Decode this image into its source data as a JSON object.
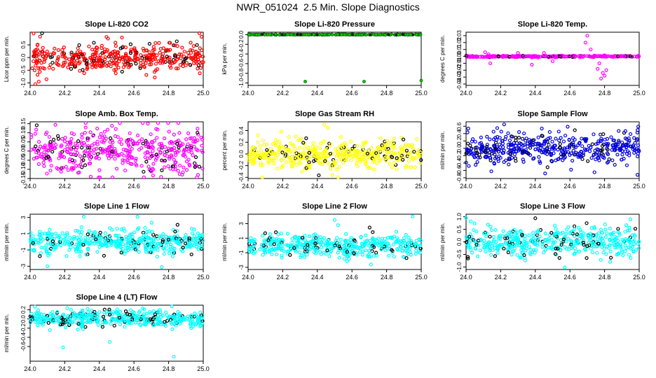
{
  "page": {
    "title": "NWR_051024  2.5 Min. Slope Diagnostics"
  },
  "x_ticks": [
    24.0,
    24.2,
    24.4,
    24.6,
    24.8,
    25.0
  ],
  "chart_data": [
    {
      "id": "co2",
      "type": "scatter",
      "title": "Slope Li-820 CO2",
      "ylabel": "Licor ppm per min.",
      "xlim": [
        24.0,
        25.0
      ],
      "ylim": [
        -1.1,
        1.0
      ],
      "yticks": [
        -1.0,
        -0.5,
        0.0,
        0.5
      ],
      "color": "#ff0000",
      "count": 440,
      "seed": 11,
      "sd": 0.27,
      "center": 0.0,
      "points": [
        [
          24.02,
          0.95
        ],
        [
          24.03,
          -1.05
        ],
        [
          24.05,
          -0.95
        ],
        [
          24.45,
          0.75
        ],
        [
          24.99,
          0.82
        ],
        [
          24.98,
          -0.62
        ]
      ]
    },
    {
      "id": "pressure",
      "type": "scatter",
      "title": "Slope Li-820 Pressure",
      "ylabel": "kPa per min.",
      "xlim": [
        24.0,
        25.0
      ],
      "ylim": [
        -1.05,
        0.05
      ],
      "yticks": [
        -1.0,
        -0.8,
        -0.6,
        -0.4,
        -0.2,
        0.0
      ],
      "color": "#00cc00",
      "count": 260,
      "seed": 22,
      "sd": 0.003,
      "center": 0.0,
      "solid": true,
      "points": [
        [
          24.33,
          -0.97
        ],
        [
          24.67,
          -0.97
        ],
        [
          25.0,
          -0.95
        ]
      ]
    },
    {
      "id": "temp",
      "type": "scatter",
      "title": "Slope Li-820 Temp.",
      "ylabel": "degrees C per min.",
      "xlim": [
        24.0,
        25.0
      ],
      "ylim": [
        -0.042,
        0.035
      ],
      "yticks": [
        -0.04,
        -0.03,
        -0.02,
        -0.01,
        0.0,
        0.01,
        0.02,
        0.03
      ],
      "color": "#ff00ff",
      "count": 300,
      "seed": 33,
      "sd": 0.0005,
      "center": 0.0,
      "points": [
        [
          24.11,
          0.006
        ],
        [
          24.14,
          -0.01
        ],
        [
          24.13,
          0.003
        ],
        [
          24.3,
          0.005
        ],
        [
          24.38,
          -0.012
        ],
        [
          24.45,
          0.005
        ],
        [
          24.5,
          -0.007
        ],
        [
          24.7,
          0.03
        ],
        [
          24.69,
          0.02
        ],
        [
          24.72,
          0.01
        ],
        [
          24.76,
          -0.018
        ],
        [
          24.78,
          -0.032
        ],
        [
          24.8,
          -0.028
        ],
        [
          24.81,
          -0.02
        ],
        [
          24.77,
          -0.01
        ],
        [
          24.79,
          -0.024
        ]
      ]
    },
    {
      "id": "boxtemp",
      "type": "scatter",
      "title": "Slope Amb. Box Temp.",
      "ylabel": "degrees C per min.",
      "xlim": [
        24.0,
        25.0
      ],
      "ylim": [
        -0.15,
        0.16
      ],
      "yticks": [
        -0.15,
        -0.1,
        -0.05,
        0.0,
        0.05,
        0.1,
        0.15
      ],
      "color": "#ff00ff",
      "count": 460,
      "seed": 44,
      "sd": 0.06,
      "center": 0.0,
      "points": [
        [
          24.68,
          0.15
        ],
        [
          24.35,
          -0.14
        ],
        [
          24.97,
          -0.13
        ]
      ]
    },
    {
      "id": "rh",
      "type": "scatter",
      "title": "Slope Gas Stream RH",
      "ylabel": "percent per min.",
      "xlim": [
        24.0,
        25.0
      ],
      "ylim": [
        -0.42,
        0.55
      ],
      "yticks": [
        -0.4,
        -0.2,
        0.0,
        0.2,
        0.4
      ],
      "color": "#ffff00",
      "count": 470,
      "seed": 55,
      "sd": 0.13,
      "center": 0.0,
      "points": [
        [
          24.44,
          0.5
        ],
        [
          24.46,
          0.45
        ],
        [
          24.52,
          -0.4
        ]
      ]
    },
    {
      "id": "sample",
      "type": "scatter",
      "title": "Slope Sample Flow",
      "ylabel": "ml/min per min.",
      "xlim": [
        24.0,
        25.0
      ],
      "ylim": [
        -0.82,
        0.72
      ],
      "yticks": [
        -0.8,
        -0.6,
        -0.4,
        -0.2,
        0.0,
        0.2,
        0.4,
        0.6
      ],
      "color": "#0000dd",
      "count": 470,
      "seed": 66,
      "sd": 0.2,
      "center": 0.0,
      "points": [
        [
          24.22,
          0.65
        ],
        [
          24.18,
          0.55
        ],
        [
          24.99,
          -0.72
        ]
      ]
    },
    {
      "id": "line1",
      "type": "scatter",
      "title": "Slope Line 1 Flow",
      "ylabel": "ml/min per min.",
      "xlim": [
        24.0,
        25.0
      ],
      "ylim": [
        -3.4,
        3.4
      ],
      "yticks": [
        -3,
        -1,
        1,
        3
      ],
      "color": "#00ffff",
      "count": 460,
      "seed": 77,
      "sd": 0.75,
      "center": 0.0,
      "points": [
        [
          24.31,
          3.1
        ],
        [
          24.62,
          3.1
        ],
        [
          24.76,
          -3.1
        ],
        [
          24.1,
          -3.0
        ]
      ]
    },
    {
      "id": "line2",
      "type": "scatter",
      "title": "Slope Line 2 Flow",
      "ylabel": "ml/min per min.",
      "xlim": [
        24.0,
        25.0
      ],
      "ylim": [
        -3.3,
        4.3
      ],
      "yticks": [
        -3,
        -1,
        1,
        3
      ],
      "color": "#00ffff",
      "count": 460,
      "seed": 88,
      "sd": 0.75,
      "center": 0.0,
      "points": [
        [
          24.5,
          3.5
        ],
        [
          24.52,
          2.8
        ],
        [
          24.71,
          -2.6
        ],
        [
          24.95,
          4.0
        ]
      ]
    },
    {
      "id": "line3",
      "type": "scatter",
      "title": "Slope Line 3 Flow",
      "ylabel": "ml/min per min.",
      "xlim": [
        24.0,
        25.0
      ],
      "ylim": [
        -1.1,
        1.1
      ],
      "yticks": [
        -1.0,
        -0.5,
        0.0,
        0.5,
        1.0
      ],
      "color": "#00ffff",
      "count": 460,
      "seed": 99,
      "sd": 0.28,
      "center": 0.0,
      "points": [
        [
          24.0,
          0.95
        ],
        [
          24.57,
          -1.02
        ],
        [
          24.95,
          0.9
        ]
      ]
    },
    {
      "id": "line4",
      "type": "scatter",
      "title": "Slope Line 4 (LT) Flow",
      "ylabel": "ml/min per min.",
      "xlim": [
        24.0,
        25.0
      ],
      "ylim": [
        -0.92,
        0.3
      ],
      "yticks": [
        -0.6,
        -0.4,
        -0.2,
        0.0,
        0.2
      ],
      "color": "#00ffff",
      "count": 460,
      "seed": 111,
      "sd": 0.09,
      "center": 0.0,
      "points": [
        [
          24.19,
          -0.62
        ],
        [
          24.46,
          -0.5
        ],
        [
          24.83,
          -0.82
        ]
      ]
    }
  ]
}
